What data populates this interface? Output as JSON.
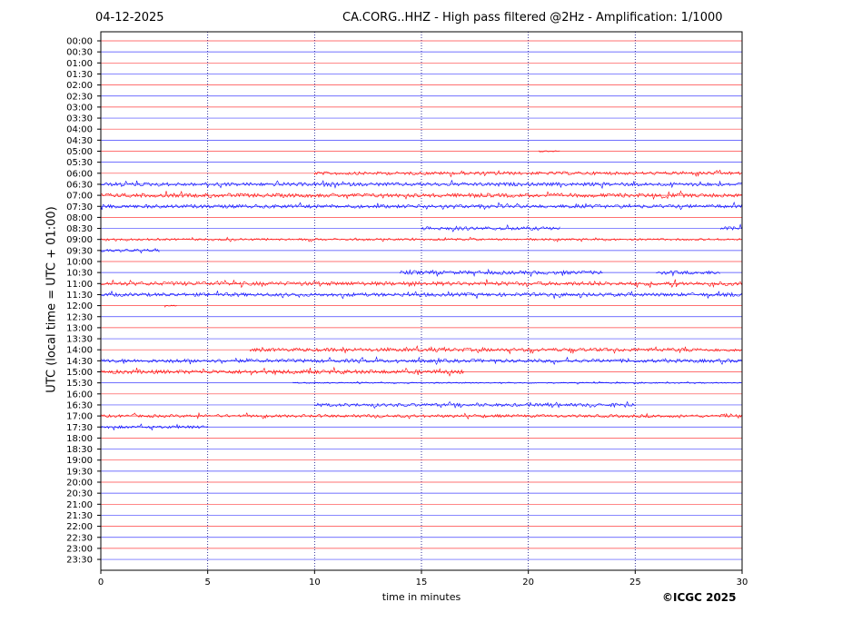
{
  "header": {
    "date": "04-12-2025",
    "title": "CA.CORG..HHZ - High pass filtered @2Hz - Amplification: 1/1000"
  },
  "footer": {
    "copyright": "©ICGC 2025"
  },
  "colors": {
    "red": "#ff0000",
    "blue": "#0000ff",
    "grid": "#000080",
    "axis": "#000000"
  },
  "chart_data": {
    "type": "line",
    "title": "CA.CORG..HHZ - High pass filtered @2Hz - Amplification: 1/1000",
    "xlabel": "time in minutes",
    "ylabel": "UTC (local time = UTC + 01:00)",
    "xlim": [
      0,
      30
    ],
    "xticks": [
      0,
      5,
      10,
      15,
      20,
      25,
      30
    ],
    "grid": "vertical dotted at 5-minute intervals",
    "rows": [
      {
        "label": "00:00",
        "color": "red",
        "activity": []
      },
      {
        "label": "00:30",
        "color": "blue",
        "activity": []
      },
      {
        "label": "01:00",
        "color": "red",
        "activity": []
      },
      {
        "label": "01:30",
        "color": "blue",
        "activity": []
      },
      {
        "label": "02:00",
        "color": "red",
        "activity": []
      },
      {
        "label": "02:30",
        "color": "blue",
        "activity": []
      },
      {
        "label": "03:00",
        "color": "red",
        "activity": []
      },
      {
        "label": "03:30",
        "color": "blue",
        "activity": []
      },
      {
        "label": "04:00",
        "color": "red",
        "activity": []
      },
      {
        "label": "04:30",
        "color": "blue",
        "activity": []
      },
      {
        "label": "05:00",
        "color": "red",
        "activity": [
          [
            20.5,
            21.5,
            0.4
          ]
        ]
      },
      {
        "label": "05:30",
        "color": "blue",
        "activity": []
      },
      {
        "label": "06:00",
        "color": "red",
        "activity": [
          [
            10,
            30,
            0.8
          ]
        ]
      },
      {
        "label": "06:30",
        "color": "blue",
        "activity": [
          [
            0,
            30,
            0.9
          ]
        ]
      },
      {
        "label": "07:00",
        "color": "red",
        "activity": [
          [
            0,
            30,
            1.0
          ]
        ]
      },
      {
        "label": "07:30",
        "color": "blue",
        "activity": [
          [
            0,
            30,
            0.9
          ]
        ]
      },
      {
        "label": "08:00",
        "color": "red",
        "activity": []
      },
      {
        "label": "08:30",
        "color": "blue",
        "activity": [
          [
            15,
            21.5,
            0.9
          ],
          [
            29,
            30,
            0.9
          ]
        ]
      },
      {
        "label": "09:00",
        "color": "red",
        "activity": [
          [
            0,
            30,
            0.5
          ]
        ]
      },
      {
        "label": "09:30",
        "color": "blue",
        "activity": [
          [
            0,
            2.8,
            0.7
          ]
        ]
      },
      {
        "label": "10:00",
        "color": "red",
        "activity": []
      },
      {
        "label": "10:30",
        "color": "blue",
        "activity": [
          [
            14,
            23.5,
            0.9
          ],
          [
            26,
            29,
            0.9
          ]
        ]
      },
      {
        "label": "11:00",
        "color": "red",
        "activity": [
          [
            0,
            30,
            1.0
          ]
        ]
      },
      {
        "label": "11:30",
        "color": "blue",
        "activity": [
          [
            0,
            30,
            0.9
          ]
        ]
      },
      {
        "label": "12:00",
        "color": "red",
        "activity": [
          [
            3,
            3.6,
            0.3
          ]
        ]
      },
      {
        "label": "12:30",
        "color": "blue",
        "activity": []
      },
      {
        "label": "13:00",
        "color": "red",
        "activity": []
      },
      {
        "label": "13:30",
        "color": "blue",
        "activity": []
      },
      {
        "label": "14:00",
        "color": "red",
        "activity": [
          [
            7,
            30,
            0.9
          ]
        ]
      },
      {
        "label": "14:30",
        "color": "blue",
        "activity": [
          [
            0,
            30,
            0.9
          ]
        ]
      },
      {
        "label": "15:00",
        "color": "red",
        "activity": [
          [
            0,
            17,
            1.0
          ]
        ]
      },
      {
        "label": "15:30",
        "color": "blue",
        "activity": [
          [
            9,
            30,
            0.3
          ]
        ]
      },
      {
        "label": "16:00",
        "color": "red",
        "activity": []
      },
      {
        "label": "16:30",
        "color": "blue",
        "activity": [
          [
            10,
            25,
            0.8
          ]
        ]
      },
      {
        "label": "17:00",
        "color": "red",
        "activity": [
          [
            0,
            30,
            0.7
          ]
        ]
      },
      {
        "label": "17:30",
        "color": "blue",
        "activity": [
          [
            0,
            5,
            0.7
          ]
        ]
      },
      {
        "label": "18:00",
        "color": "red",
        "activity": []
      },
      {
        "label": "18:30",
        "color": "blue",
        "activity": []
      },
      {
        "label": "19:00",
        "color": "red",
        "activity": []
      },
      {
        "label": "19:30",
        "color": "blue",
        "activity": []
      },
      {
        "label": "20:00",
        "color": "red",
        "activity": []
      },
      {
        "label": "20:30",
        "color": "blue",
        "activity": []
      },
      {
        "label": "21:00",
        "color": "red",
        "activity": []
      },
      {
        "label": "21:30",
        "color": "blue",
        "activity": []
      },
      {
        "label": "22:00",
        "color": "red",
        "activity": []
      },
      {
        "label": "22:30",
        "color": "blue",
        "activity": []
      },
      {
        "label": "23:00",
        "color": "red",
        "activity": []
      },
      {
        "label": "23:30",
        "color": "blue",
        "activity": []
      }
    ]
  }
}
